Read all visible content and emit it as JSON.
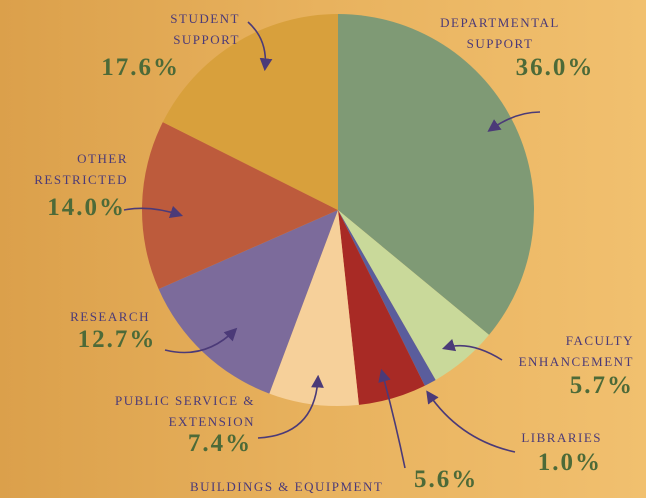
{
  "chart_data": {
    "type": "pie",
    "categories": [
      "DEPARTMENTAL SUPPORT",
      "FACULTY ENHANCEMENT",
      "LIBRARIES",
      "BUILDINGS & EQUIPMENT",
      "PUBLIC SERVICE & EXTENSION",
      "RESEARCH",
      "OTHER RESTRICTED",
      "STUDENT SUPPORT"
    ],
    "values": [
      36.0,
      5.7,
      1.0,
      5.6,
      7.4,
      12.7,
      14.0,
      17.6
    ],
    "value_labels": [
      "36.0%",
      "5.7%",
      "1.0%",
      "5.6%",
      "7.4%",
      "12.7%",
      "14.0%",
      "17.6%"
    ],
    "colors": [
      "#7f9a75",
      "#c9d99a",
      "#5a5d9c",
      "#a82a25",
      "#f6d09a",
      "#7c6b9b",
      "#bd5b3c",
      "#d8a03c"
    ]
  }
}
